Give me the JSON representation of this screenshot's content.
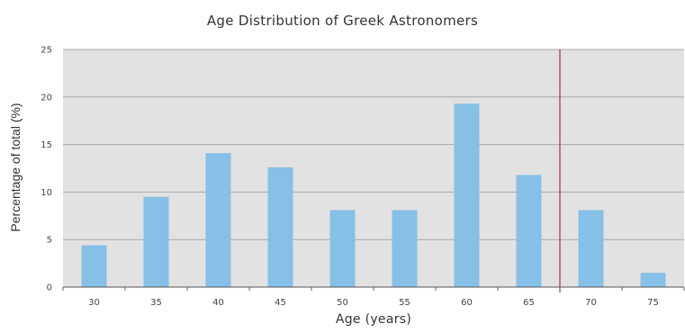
{
  "chart_data": {
    "type": "bar",
    "title": "Age Distribution of Greek Astronomers",
    "xlabel": "Age (years)",
    "ylabel": "Percentage of total (%)",
    "categories": [
      "30",
      "35",
      "40",
      "45",
      "50",
      "55",
      "60",
      "65",
      "70",
      "75"
    ],
    "values": [
      4.4,
      9.5,
      14.1,
      12.6,
      8.1,
      8.1,
      19.3,
      11.8,
      8.1,
      1.5
    ],
    "ylim": [
      0,
      25
    ],
    "yticks": [
      "0",
      "5",
      "10",
      "15",
      "20",
      "25"
    ],
    "reference_line_x": 67.5,
    "grid": true,
    "legend": "none",
    "colors": {
      "bar": "#86c0e6",
      "plot_background": "#e2e2e2",
      "grid": "#a8a8a8",
      "reference_line": "#c0204a"
    }
  }
}
